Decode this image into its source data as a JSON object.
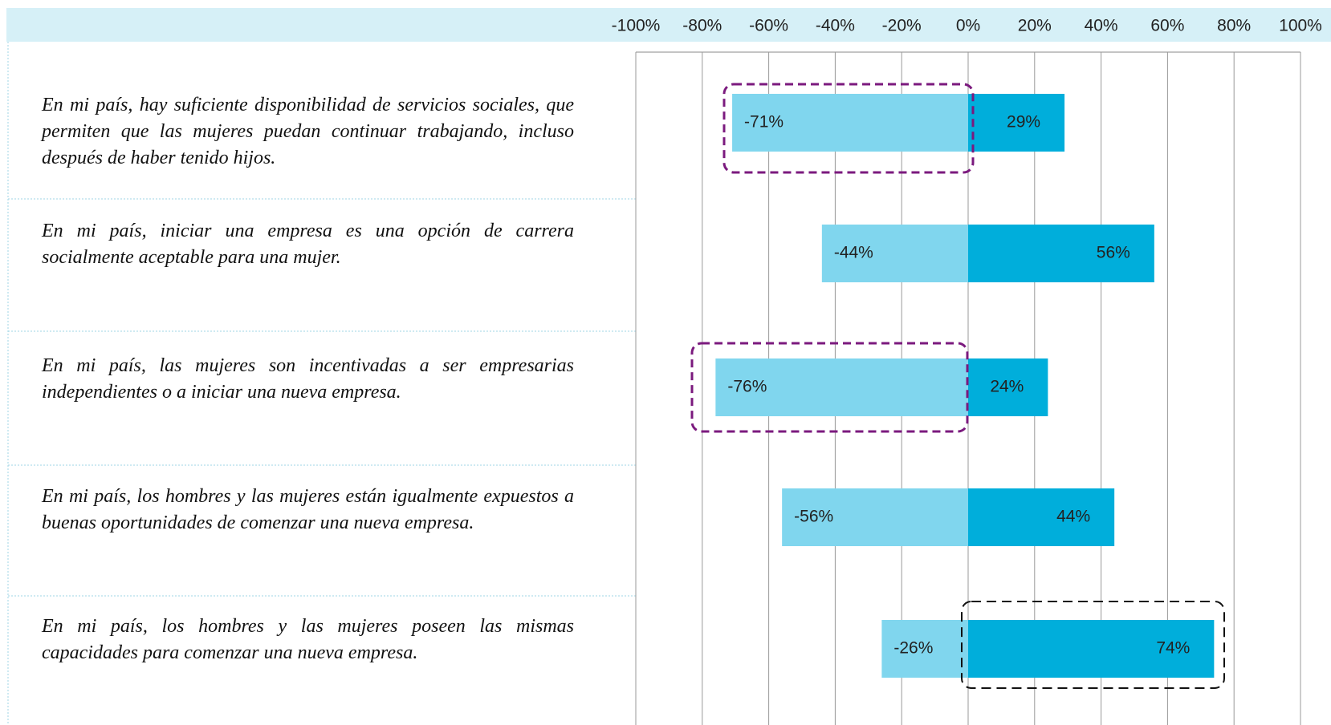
{
  "chart_data": {
    "type": "diverging_bar",
    "categories": [
      "En mi país, hay suficiente disponibilidad de servicios sociales, que permiten que las mujeres puedan continuar trabajando, incluso después de haber tenido hijos.",
      "En mi país, iniciar una empresa es una opción de carrera socialmente aceptable para una mujer.",
      "En mi país, las mujeres son incentivadas a ser empresarias independientes o a iniciar una nueva empresa.",
      "En mi país, los hombres y las mujeres están igualmente expuestos a buenas oportunidades de comenzar una nueva empresa.",
      "En mi país, los hombres y las mujeres poseen las mismas capacidades para comenzar una nueva empresa."
    ],
    "series": [
      {
        "color": "#80d6ee",
        "values": [
          -71,
          -44,
          -76,
          -56,
          -26
        ],
        "value_labels": [
          "-71%",
          "-44%",
          "-76%",
          "-56%",
          "-26%"
        ]
      },
      {
        "color": "#00aedb",
        "values": [
          29,
          56,
          24,
          44,
          74
        ],
        "value_labels": [
          "29%",
          "56%",
          "24%",
          "44%",
          "74%"
        ]
      }
    ],
    "xlim": [
      -100,
      100
    ],
    "xticks": [
      {
        "value": -100,
        "label": "-100%"
      },
      {
        "value": -80,
        "label": "-80%"
      },
      {
        "value": -60,
        "label": "-60%"
      },
      {
        "value": -40,
        "label": "-40%"
      },
      {
        "value": -20,
        "label": "-20%"
      },
      {
        "value": 0,
        "label": "0%"
      },
      {
        "value": 20,
        "label": "20%"
      },
      {
        "value": 40,
        "label": "40%"
      },
      {
        "value": 60,
        "label": "60%"
      },
      {
        "value": 80,
        "label": "80%"
      },
      {
        "value": 100,
        "label": "100%"
      }
    ],
    "grid": true
  }
}
